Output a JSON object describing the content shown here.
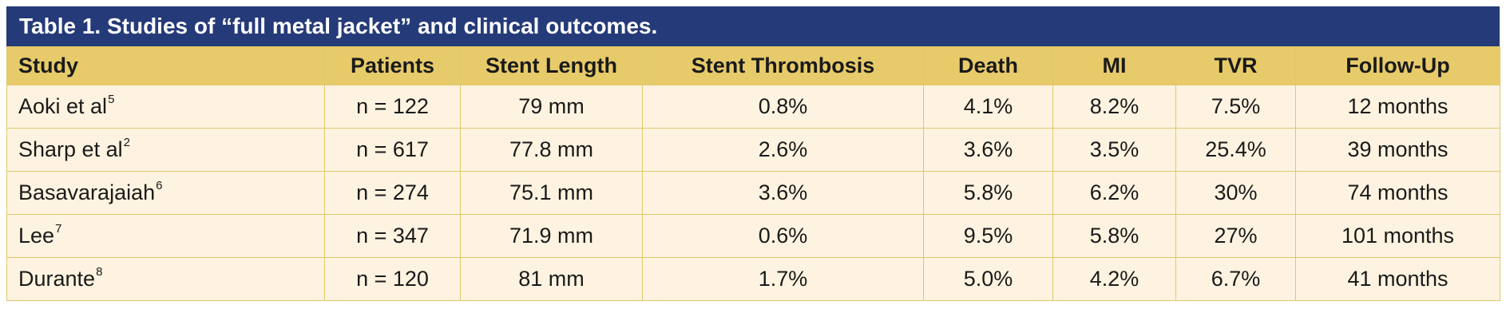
{
  "caption": "Table 1. Studies of “full metal jacket” and clinical outcomes.",
  "headers": [
    "Study",
    "Patients",
    "Stent Length",
    "Stent Thrombosis",
    "Death",
    "MI",
    "TVR",
    "Follow-Up"
  ],
  "rows": [
    {
      "study": "Aoki et al",
      "ref": "5",
      "patients": "n = 122",
      "stent_length": "79 mm",
      "stent_thrombosis": "0.8%",
      "death": "4.1%",
      "mi": "8.2%",
      "tvr": "7.5%",
      "follow_up": "12 months"
    },
    {
      "study": "Sharp et al",
      "ref": "2",
      "patients": "n = 617",
      "stent_length": "77.8 mm",
      "stent_thrombosis": "2.6%",
      "death": "3.6%",
      "mi": "3.5%",
      "tvr": "25.4%",
      "follow_up": "39 months"
    },
    {
      "study": "Basavarajaiah",
      "ref": "6",
      "patients": "n = 274",
      "stent_length": "75.1 mm",
      "stent_thrombosis": "3.6%",
      "death": "5.8%",
      "mi": "6.2%",
      "tvr": "30%",
      "follow_up": "74 months"
    },
    {
      "study": "Lee",
      "ref": "7",
      "patients": "n = 347",
      "stent_length": "71.9 mm",
      "stent_thrombosis": "0.6%",
      "death": "9.5%",
      "mi": "5.8%",
      "tvr": "27%",
      "follow_up": "101 months"
    },
    {
      "study": "Durante",
      "ref": "8",
      "patients": "n = 120",
      "stent_length": "81 mm",
      "stent_thrombosis": "1.7%",
      "death": "5.0%",
      "mi": "4.2%",
      "tvr": "6.7%",
      "follow_up": "41 months"
    }
  ],
  "colors": {
    "caption_bg": "#253a78",
    "header_bg": "#e7cb6a",
    "row_bg": "#fef3e0",
    "border": "#dfc86a"
  }
}
